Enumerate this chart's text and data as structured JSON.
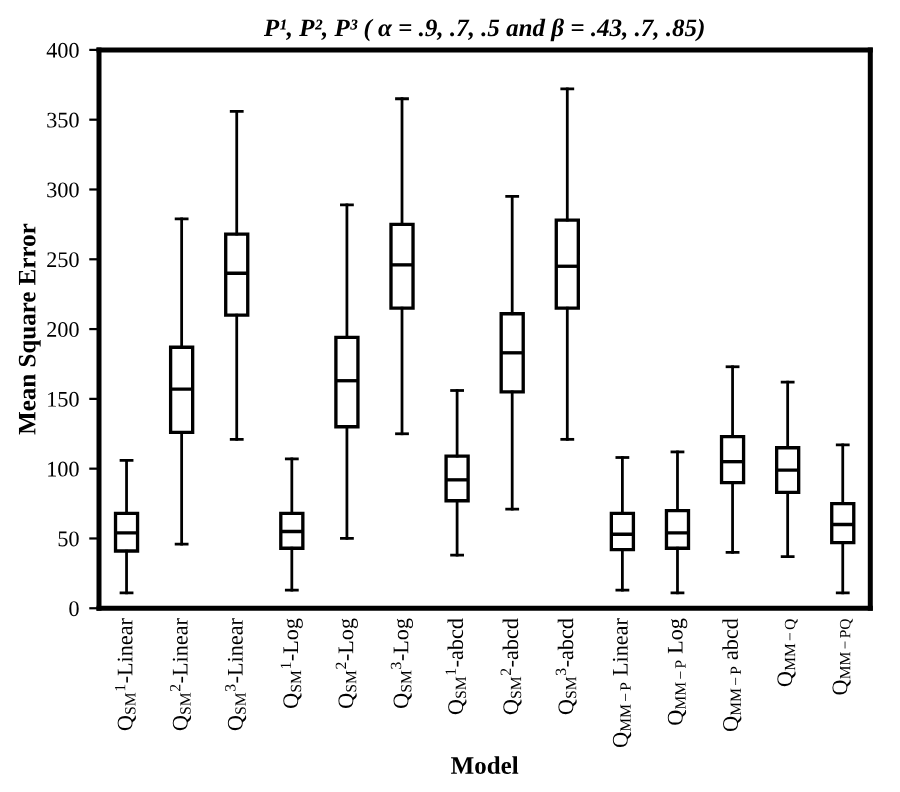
{
  "chart_data": {
    "type": "box",
    "title": "P¹, P², P³ ( α = .9, .7, .5 and β = .43, .7, .85)",
    "xlabel": "Model",
    "ylabel": "Mean Square Error",
    "categories": [
      "Q$_{SM}$$^{1}$-Linear",
      "Q$_{SM}$$^{2}$-Linear",
      "Q$_{SM}$$^{3}$-Linear",
      "Q$_{SM}$$^{1}$-Log",
      "Q$_{SM}$$^{2}$-Log",
      "Q$_{SM}$$^{3}$-Log",
      "Q$_{SM}$$^{1}$-abcd",
      "Q$_{SM}$$^{2}$-abcd",
      "Q$_{SM}$$^{3}$-abcd",
      "Q$_{MM−P}$ Linear",
      "Q$_{MM−P}$ Log",
      "Q$_{MM−P}$ abcd",
      "Q$_{MM−Q}$",
      "Q$_{MM−PQ}$"
    ],
    "boxes": [
      {
        "low": 11,
        "q1": 41,
        "median": 54,
        "q3": 68,
        "high": 106
      },
      {
        "low": 46,
        "q1": 126,
        "median": 157,
        "q3": 187,
        "high": 279
      },
      {
        "low": 121,
        "q1": 210,
        "median": 240,
        "q3": 268,
        "high": 356
      },
      {
        "low": 13,
        "q1": 43,
        "median": 55,
        "q3": 68,
        "high": 107
      },
      {
        "low": 50,
        "q1": 130,
        "median": 163,
        "q3": 194,
        "high": 289
      },
      {
        "low": 125,
        "q1": 215,
        "median": 246,
        "q3": 275,
        "high": 365
      },
      {
        "low": 38,
        "q1": 77,
        "median": 92,
        "q3": 109,
        "high": 156
      },
      {
        "low": 71,
        "q1": 155,
        "median": 183,
        "q3": 211,
        "high": 295
      },
      {
        "low": 121,
        "q1": 215,
        "median": 245,
        "q3": 278,
        "high": 372
      },
      {
        "low": 13,
        "q1": 42,
        "median": 53,
        "q3": 68,
        "high": 108
      },
      {
        "low": 11,
        "q1": 43,
        "median": 54,
        "q3": 70,
        "high": 112
      },
      {
        "low": 40,
        "q1": 90,
        "median": 105,
        "q3": 123,
        "high": 173
      },
      {
        "low": 37,
        "q1": 83,
        "median": 99,
        "q3": 115,
        "high": 162
      },
      {
        "low": 11,
        "q1": 47,
        "median": 60,
        "q3": 75,
        "high": 117
      }
    ],
    "ylim": [
      0,
      400
    ],
    "yticks": [
      0,
      50,
      100,
      150,
      200,
      250,
      300,
      350,
      400
    ],
    "grid": false,
    "legend": false
  }
}
